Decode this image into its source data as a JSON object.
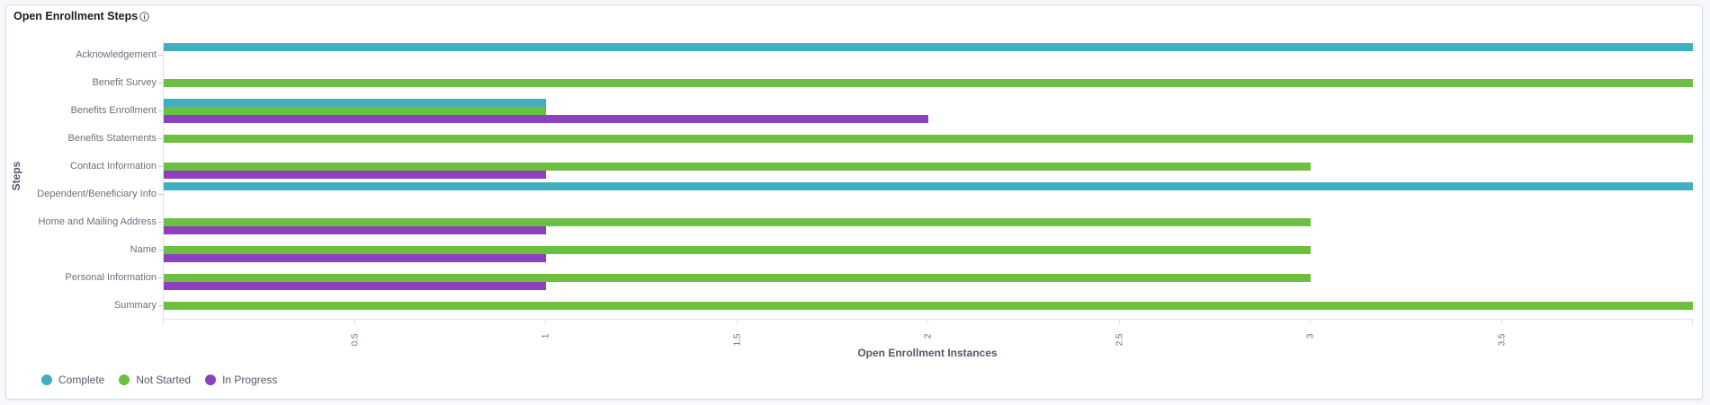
{
  "panel": {
    "title": "Open Enrollment Steps",
    "info_icon": "info-circle-icon"
  },
  "chart_data": {
    "type": "bar",
    "orientation": "horizontal",
    "title": "Open Enrollment Steps",
    "xlabel": "Open Enrollment Instances",
    "ylabel": "Steps",
    "xlim": [
      0,
      4
    ],
    "x_ticks": [
      "0.5",
      "1",
      "1.5",
      "2",
      "2.5",
      "3",
      "3.5"
    ],
    "grid": false,
    "legend_position": "bottom-left",
    "categories": [
      "Acknowledgement",
      "Benefit Survey",
      "Benefits Enrollment",
      "Benefits Statements",
      "Contact Information",
      "Dependent/Beneficiary Info",
      "Home and Mailing Address",
      "Name",
      "Personal Information",
      "Summary"
    ],
    "series": [
      {
        "name": "Complete",
        "color": "#41afbf",
        "values": [
          4,
          0,
          1,
          0,
          0,
          4,
          0,
          0,
          0,
          0
        ]
      },
      {
        "name": "Not Started",
        "color": "#6dbf41",
        "values": [
          0,
          4,
          1,
          4,
          3,
          0,
          3,
          3,
          3,
          4
        ]
      },
      {
        "name": "In Progress",
        "color": "#8b41bf",
        "values": [
          0,
          0,
          2,
          0,
          1,
          0,
          1,
          1,
          1,
          0
        ]
      }
    ]
  },
  "legend": {
    "items": [
      {
        "label": "Complete",
        "color": "#41afbf"
      },
      {
        "label": "Not Started",
        "color": "#6dbf41"
      },
      {
        "label": "In Progress",
        "color": "#8b41bf"
      }
    ]
  }
}
